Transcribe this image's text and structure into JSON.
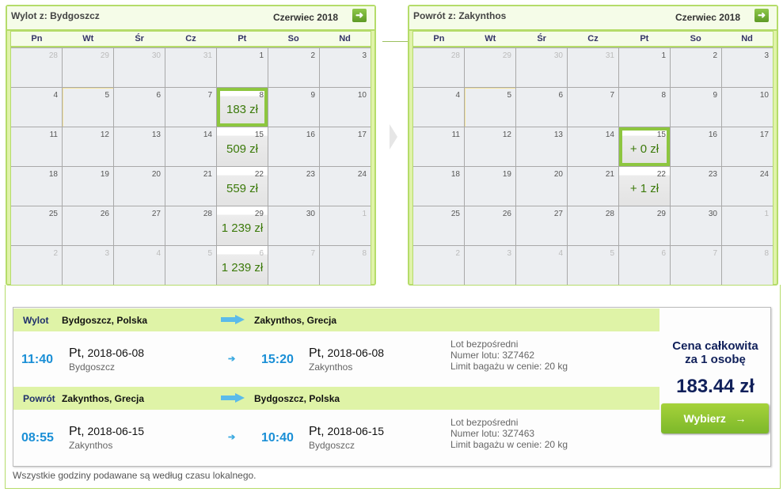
{
  "calendars": [
    {
      "title": "Wylot z: Bydgoszcz",
      "month": "Czerwiec 2018",
      "dow": [
        "Pn",
        "Wt",
        "Śr",
        "Cz",
        "Pt",
        "So",
        "Nd"
      ],
      "cells": [
        {
          "d": "28",
          "o": 1
        },
        {
          "d": "29",
          "o": 1
        },
        {
          "d": "30",
          "o": 1
        },
        {
          "d": "31",
          "o": 1
        },
        {
          "d": "1"
        },
        {
          "d": "2"
        },
        {
          "d": "3"
        },
        {
          "d": "4"
        },
        {
          "d": "5",
          "today": 1
        },
        {
          "d": "6"
        },
        {
          "d": "7"
        },
        {
          "d": "8",
          "p": "183 zł",
          "sel": 1
        },
        {
          "d": "9"
        },
        {
          "d": "10"
        },
        {
          "d": "11"
        },
        {
          "d": "12"
        },
        {
          "d": "13"
        },
        {
          "d": "14"
        },
        {
          "d": "15",
          "p": "509 zł"
        },
        {
          "d": "16"
        },
        {
          "d": "17"
        },
        {
          "d": "18"
        },
        {
          "d": "19"
        },
        {
          "d": "20"
        },
        {
          "d": "21"
        },
        {
          "d": "22",
          "p": "559 zł"
        },
        {
          "d": "23"
        },
        {
          "d": "24"
        },
        {
          "d": "25"
        },
        {
          "d": "26"
        },
        {
          "d": "27"
        },
        {
          "d": "28"
        },
        {
          "d": "29",
          "p": "1 239 zł"
        },
        {
          "d": "30"
        },
        {
          "d": "1",
          "o": 1
        },
        {
          "d": "2",
          "o": 1
        },
        {
          "d": "3",
          "o": 1
        },
        {
          "d": "4",
          "o": 1
        },
        {
          "d": "5",
          "o": 1
        },
        {
          "d": "6",
          "o": 1,
          "p": "1 239 zł"
        },
        {
          "d": "7",
          "o": 1
        },
        {
          "d": "8",
          "o": 1
        }
      ]
    },
    {
      "title": "Powrót z: Zakynthos",
      "month": "Czerwiec 2018",
      "dow": [
        "Pn",
        "Wt",
        "Śr",
        "Cz",
        "Pt",
        "So",
        "Nd"
      ],
      "cells": [
        {
          "d": "28",
          "o": 1
        },
        {
          "d": "29",
          "o": 1
        },
        {
          "d": "30",
          "o": 1
        },
        {
          "d": "31",
          "o": 1
        },
        {
          "d": "1"
        },
        {
          "d": "2"
        },
        {
          "d": "3"
        },
        {
          "d": "4"
        },
        {
          "d": "5",
          "today": 1
        },
        {
          "d": "6"
        },
        {
          "d": "7"
        },
        {
          "d": "8"
        },
        {
          "d": "9"
        },
        {
          "d": "10"
        },
        {
          "d": "11"
        },
        {
          "d": "12"
        },
        {
          "d": "13"
        },
        {
          "d": "14"
        },
        {
          "d": "15",
          "p": "+ 0 zł",
          "sel": 1
        },
        {
          "d": "16"
        },
        {
          "d": "17"
        },
        {
          "d": "18"
        },
        {
          "d": "19"
        },
        {
          "d": "20"
        },
        {
          "d": "21"
        },
        {
          "d": "22",
          "p": "+ 1 zł"
        },
        {
          "d": "23"
        },
        {
          "d": "24"
        },
        {
          "d": "25"
        },
        {
          "d": "26"
        },
        {
          "d": "27"
        },
        {
          "d": "28"
        },
        {
          "d": "29"
        },
        {
          "d": "30"
        },
        {
          "d": "1",
          "o": 1
        },
        {
          "d": "2",
          "o": 1
        },
        {
          "d": "3",
          "o": 1
        },
        {
          "d": "4",
          "o": 1
        },
        {
          "d": "5",
          "o": 1
        },
        {
          "d": "6",
          "o": 1
        },
        {
          "d": "7",
          "o": 1
        },
        {
          "d": "8",
          "o": 1
        }
      ]
    }
  ],
  "flights": [
    {
      "label": "Wylot",
      "from": "Bydgoszcz, Polska",
      "to": "Zakynthos, Grecja",
      "dep_time": "11:40",
      "dep_day": "Pt,",
      "dep_date": "2018-06-08",
      "dep_city": "Bydgoszcz",
      "arr_time": "15:20",
      "arr_day": "Pt,",
      "arr_date": "2018-06-08",
      "arr_city": "Zakynthos",
      "info": [
        "Lot bezpośredni",
        "Numer lotu: 3Z7462",
        "Limit bagażu w cenie: 20 kg"
      ]
    },
    {
      "label": "Powrót",
      "from": "Zakynthos, Grecja",
      "to": "Bydgoszcz, Polska",
      "dep_time": "08:55",
      "dep_day": "Pt,",
      "dep_date": "2018-06-15",
      "dep_city": "Zakynthos",
      "arr_time": "10:40",
      "arr_day": "Pt,",
      "arr_date": "2018-06-15",
      "arr_city": "Bydgoszcz",
      "info": [
        "Lot bezpośredni",
        "Numer lotu: 3Z7463",
        "Limit bagażu w cenie: 20 kg"
      ]
    }
  ],
  "price": {
    "title1": "Cena całkowita",
    "title2": "za 1 osobę",
    "value": "183.44 zł",
    "button": "Wybierz",
    "button_icon": "→"
  },
  "note": "Wszystkie godziny podawane są według czasu lokalnego.",
  "colors": {
    "accent": "#8dc63f",
    "time": "#1a8fd6",
    "strip": "#dff3a7",
    "price": "#10205a"
  }
}
